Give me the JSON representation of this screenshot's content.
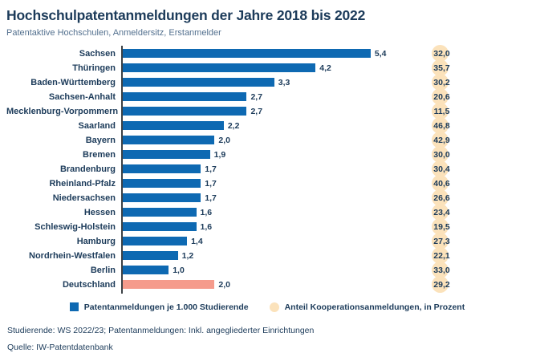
{
  "title": "Hochschulpatentanmeldungen der Jahre 2018 bis 2022",
  "subtitle": "Patentaktive Hochschulen, Anmeldersitz, Erstanmelder",
  "colors": {
    "bar_blue": "#0e69b2",
    "bar_highlight_salmon": "#f59b8c",
    "coop_circle_cream": "#fbe2bb",
    "text_navy": "#1c3b5a",
    "subtitle_blue_gray": "#54718f",
    "axis_line": "#3c4146"
  },
  "legend": [
    {
      "swatch": "blue-square",
      "label": "Patentanmeldungen je 1.000 Studierende"
    },
    {
      "swatch": "cream-circle",
      "label": "Anteil Kooperationsanmeldungen, in Prozent"
    }
  ],
  "footnotes": [
    "Studierende: WS 2022/23; Patentanmeldungen: Inkl. angegliederter Einrichtungen",
    "Quelle: IW-Patentdatenbank"
  ],
  "chart_data": {
    "type": "bar",
    "orientation": "horizontal",
    "title": "Hochschulpatentanmeldungen der Jahre 2018 bis 2022",
    "subtitle": "Patentaktive Hochschulen, Anmeldersitz, Erstanmelder",
    "categories": [
      "Sachsen",
      "Thüringen",
      "Baden-Württemberg",
      "Sachsen-Anhalt",
      "Mecklenburg-Vorpommern",
      "Saarland",
      "Bayern",
      "Bremen",
      "Brandenburg",
      "Rheinland-Pfalz",
      "Niedersachsen",
      "Hessen",
      "Schleswig-Holstein",
      "Hamburg",
      "Nordrhein-Westfalen",
      "Berlin",
      "Deutschland"
    ],
    "series": [
      {
        "name": "Patentanmeldungen je 1.000 Studierende",
        "values": [
          5.4,
          4.2,
          3.3,
          2.7,
          2.7,
          2.2,
          2.0,
          1.9,
          1.7,
          1.7,
          1.7,
          1.6,
          1.6,
          1.4,
          1.2,
          1.0,
          2.0
        ],
        "labels": [
          "5,4",
          "4,2",
          "3,3",
          "2,7",
          "2,7",
          "2,2",
          "2,0",
          "1,9",
          "1,7",
          "1,7",
          "1,7",
          "1,6",
          "1,6",
          "1,4",
          "1,2",
          "1,0",
          "2,0"
        ]
      },
      {
        "name": "Anteil Kooperationsanmeldungen, in Prozent",
        "values": [
          32.0,
          35.7,
          30.2,
          20.6,
          11.5,
          46.8,
          42.9,
          30.0,
          30.4,
          40.6,
          26.6,
          23.4,
          19.5,
          27.3,
          22.1,
          33.0,
          29.2
        ],
        "labels": [
          "32,0",
          "35,7",
          "30,2",
          "20,6",
          "11,5",
          "46,8",
          "42,9",
          "30,0",
          "30,4",
          "40,6",
          "26,6",
          "23,4",
          "19,5",
          "27,3",
          "22,1",
          "33,0",
          "29,2"
        ]
      }
    ],
    "highlight_category": "Deutschland",
    "xlim": [
      0,
      5.4
    ],
    "grid": false,
    "legend_position": "bottom"
  }
}
